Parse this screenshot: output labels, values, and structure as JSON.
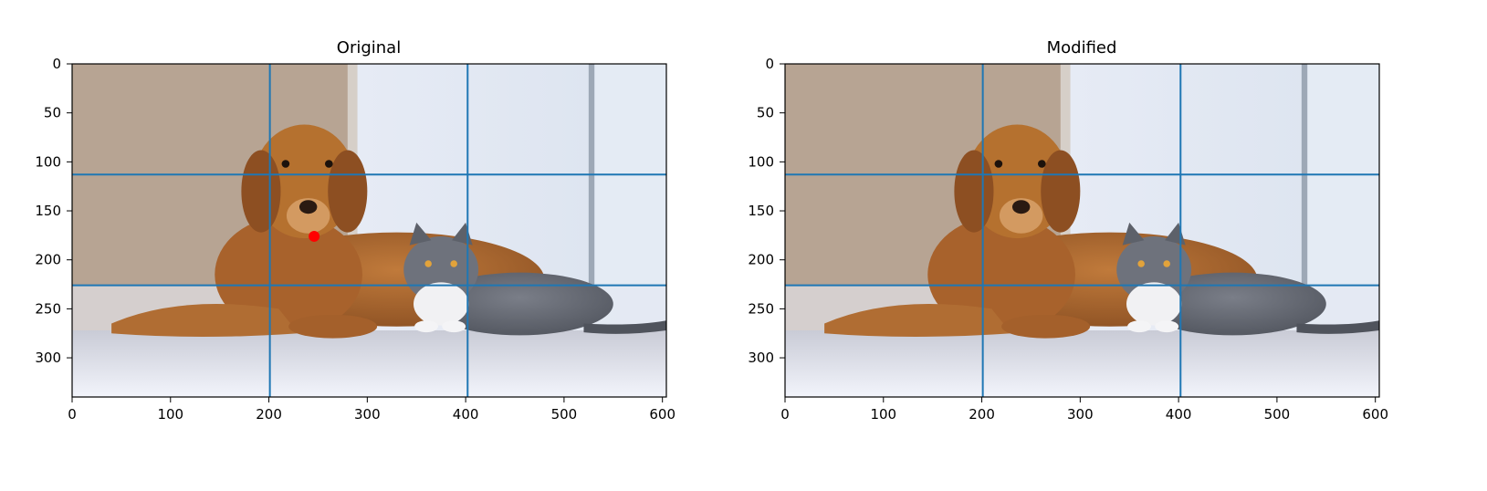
{
  "panels": [
    {
      "id": "left",
      "title": "Original",
      "show_marker": true
    },
    {
      "id": "right",
      "title": "Modified",
      "show_marker": false
    }
  ],
  "axes": {
    "x_ticks": [
      0,
      100,
      200,
      300,
      400,
      500,
      600
    ],
    "y_ticks": [
      0,
      50,
      100,
      150,
      200,
      250,
      300
    ],
    "x_range": [
      0,
      604
    ],
    "y_range": [
      340,
      0
    ]
  },
  "grid_lines": {
    "vertical_x": [
      201,
      402
    ],
    "horizontal_y": [
      113,
      226
    ]
  },
  "marker": {
    "x": 246,
    "y": 176,
    "color": "#ff0000"
  },
  "colors": {
    "grid_line": "#1f77b4",
    "axes": "#000000"
  },
  "scene": {
    "description_icons": [
      "dog-icon",
      "cat-icon"
    ]
  }
}
